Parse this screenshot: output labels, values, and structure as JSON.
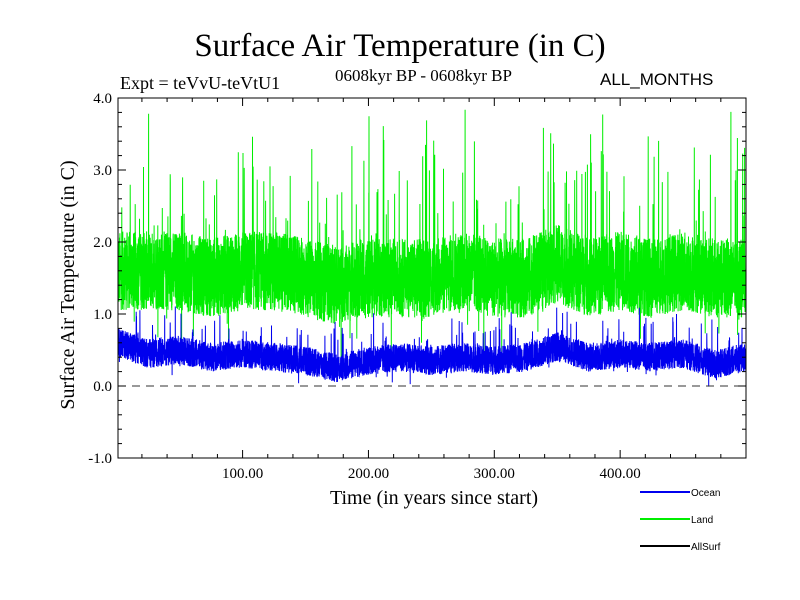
{
  "header": {
    "title": "Surface Air Temperature (in C)",
    "experiment": "Expt = teVvU-teVtU1",
    "period": "0608kyr BP - 0608kyr BP",
    "months": "ALL_MONTHS"
  },
  "chart_data": {
    "type": "line",
    "title": "Surface Air Temperature (in C)",
    "xlabel": "Time (in years since start)",
    "ylabel": "Surface Air Temperature (in C)",
    "xlim": [
      1,
      500
    ],
    "ylim": [
      -1.0,
      4.0
    ],
    "x_ticks": [
      100,
      200,
      300,
      400
    ],
    "x_tick_labels": [
      "100.00",
      "200.00",
      "300.00",
      "400.00"
    ],
    "y_ticks": [
      -1.0,
      0.0,
      1.0,
      2.0,
      3.0,
      4.0
    ],
    "y_tick_labels": [
      "-1.0",
      "0.0",
      "1.0",
      "2.0",
      "3.0",
      "4.0"
    ],
    "zero_line": true,
    "grid": false,
    "legend_position": "bottom-right",
    "series": [
      {
        "name": "Land",
        "color": "#00ee00",
        "x": [
          1,
          25,
          50,
          75,
          100,
          125,
          150,
          175,
          200,
          225,
          250,
          275,
          300,
          325,
          350,
          375,
          400,
          425,
          450,
          475,
          500
        ],
        "values": [
          1.6,
          1.6,
          1.6,
          1.5,
          1.6,
          1.6,
          1.5,
          1.4,
          1.5,
          1.5,
          1.5,
          1.6,
          1.5,
          1.5,
          1.7,
          1.5,
          1.6,
          1.5,
          1.6,
          1.5,
          1.5
        ]
      },
      {
        "name": "Ocean",
        "color": "#0000ee",
        "x": [
          1,
          25,
          50,
          75,
          100,
          125,
          150,
          175,
          200,
          225,
          250,
          275,
          300,
          325,
          350,
          375,
          400,
          425,
          450,
          475,
          500
        ],
        "values": [
          0.6,
          0.45,
          0.5,
          0.4,
          0.45,
          0.4,
          0.35,
          0.25,
          0.35,
          0.4,
          0.35,
          0.4,
          0.35,
          0.4,
          0.55,
          0.4,
          0.45,
          0.4,
          0.45,
          0.3,
          0.4
        ]
      },
      {
        "name": "AllSurf",
        "color": "#000000",
        "x": [],
        "values": []
      }
    ]
  }
}
